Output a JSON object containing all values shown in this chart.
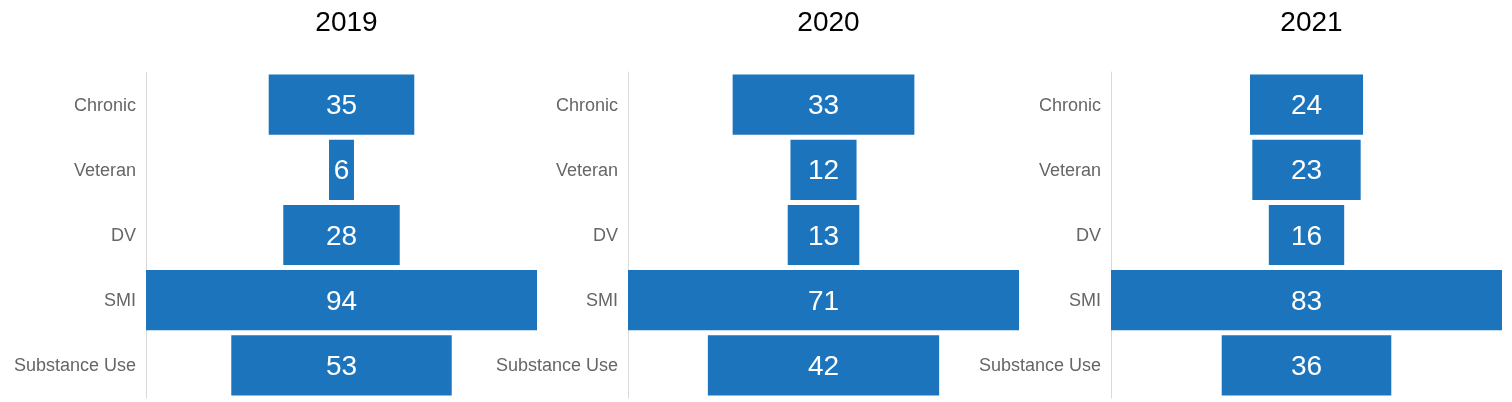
{
  "chart_data": [
    {
      "type": "other",
      "title": "2019",
      "categories": [
        "Chronic",
        "Veteran",
        "DV",
        "SMI",
        "Substance Use"
      ],
      "values": [
        35,
        6,
        28,
        94,
        53
      ],
      "color": "#1c75bc",
      "data_labels": true
    },
    {
      "type": "other",
      "title": "2020",
      "categories": [
        "Chronic",
        "Veteran",
        "DV",
        "SMI",
        "Substance Use"
      ],
      "values": [
        33,
        12,
        13,
        71,
        42
      ],
      "color": "#1c75bc",
      "data_labels": true
    },
    {
      "type": "other",
      "title": "2021",
      "categories": [
        "Chronic",
        "Veteran",
        "DV",
        "SMI",
        "Substance Use"
      ],
      "values": [
        24,
        23,
        16,
        83,
        36
      ],
      "color": "#1c75bc",
      "data_labels": true
    }
  ]
}
